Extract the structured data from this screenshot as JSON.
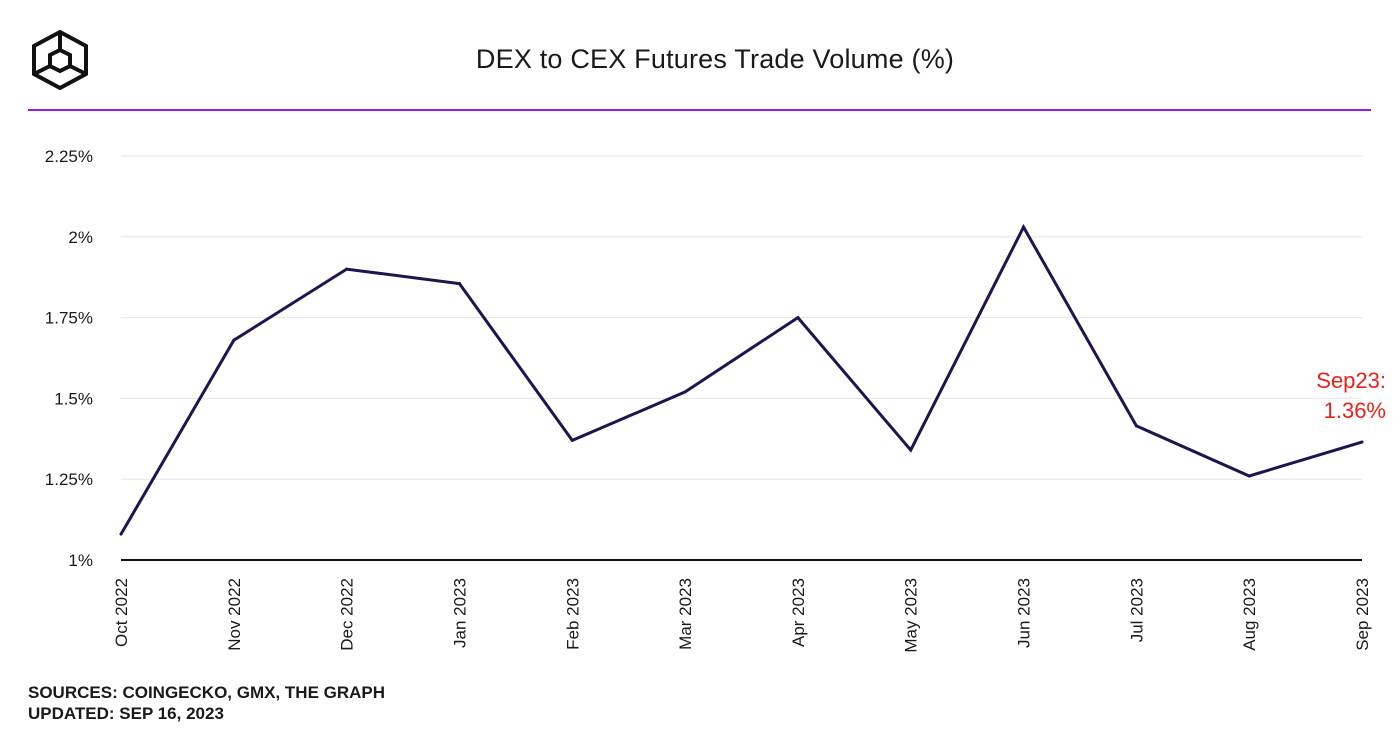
{
  "header": {
    "title": "DEX to CEX Futures Trade Volume (%)",
    "logo_icon": "hexagon-cube-logo-icon",
    "accent_color": "#9b1ae0"
  },
  "chart_data": {
    "type": "line",
    "title": "DEX to CEX Futures Trade Volume (%)",
    "xlabel": "",
    "ylabel": "",
    "ylim": [
      1,
      2.25
    ],
    "y_ticks": [
      {
        "value": 1,
        "label": "1%"
      },
      {
        "value": 1.25,
        "label": "1.25%"
      },
      {
        "value": 1.5,
        "label": "1.5%"
      },
      {
        "value": 1.75,
        "label": "1.75%"
      },
      {
        "value": 2,
        "label": "2%"
      },
      {
        "value": 2.25,
        "label": "2.25%"
      }
    ],
    "grid": true,
    "categories": [
      "Oct 2022",
      "Nov 2022",
      "Dec 2022",
      "Jan 2023",
      "Feb 2023",
      "Mar 2023",
      "Apr 2023",
      "May 2023",
      "Jun 2023",
      "Jul 2023",
      "Aug 2023",
      "Sep 2023"
    ],
    "series": [
      {
        "name": "DEX to CEX Futures Trade Volume (%)",
        "color": "#1c1650",
        "values": [
          1.08,
          1.68,
          1.9,
          1.855,
          1.37,
          1.52,
          1.75,
          1.34,
          2.03,
          1.415,
          1.26,
          1.365
        ]
      }
    ],
    "annotation": {
      "line1": "Sep23:",
      "line2": "1.36%",
      "color": "#e8231a",
      "category": "Sep 2023"
    }
  },
  "footer": {
    "sources": "SOURCES: COINGECKO, GMX, THE GRAPH",
    "updated": "UPDATED: SEP 16, 2023"
  }
}
